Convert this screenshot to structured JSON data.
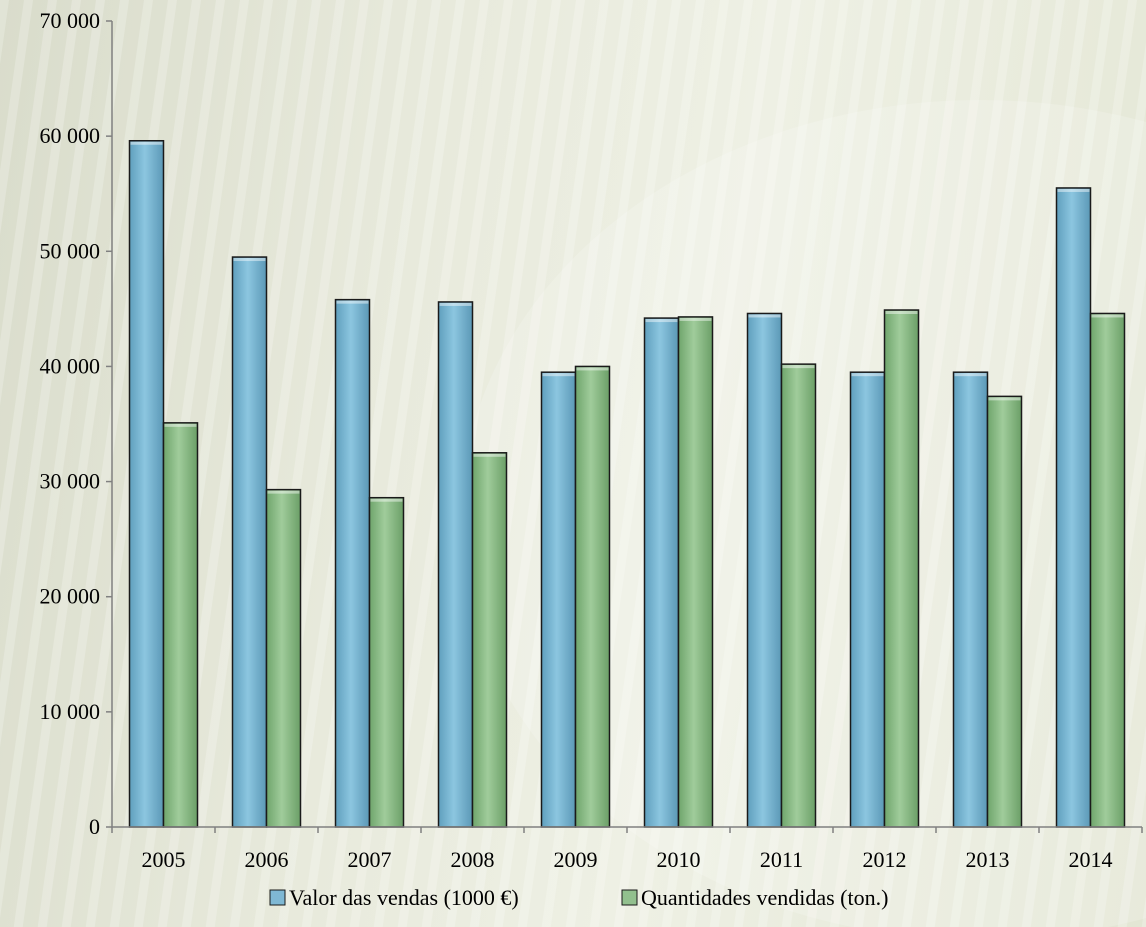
{
  "chart_data": {
    "type": "bar",
    "categories": [
      "2005",
      "2006",
      "2007",
      "2008",
      "2009",
      "2010",
      "2011",
      "2012",
      "2013",
      "2014"
    ],
    "series": [
      {
        "name": "Valor das vendas (1000 €)",
        "color": "#7fb8d4",
        "values": [
          59600,
          49500,
          45800,
          45600,
          39500,
          44200,
          44600,
          39500,
          39500,
          55500
        ]
      },
      {
        "name": "Quantidades vendidas (ton.)",
        "color": "#92c08e",
        "values": [
          35100,
          29300,
          28600,
          32500,
          40000,
          44300,
          40200,
          44900,
          37400,
          44600
        ]
      }
    ],
    "ylim": [
      0,
      70000
    ],
    "yticks": [
      0,
      10000,
      20000,
      30000,
      40000,
      50000,
      60000,
      70000
    ],
    "ytick_labels": [
      "0",
      "10 000",
      "20 000",
      "30 000",
      "40 000",
      "50 000",
      "60 000",
      "70 000"
    ],
    "title": "",
    "xlabel": "",
    "ylabel": "",
    "grid": false,
    "legend_position": "bottom"
  },
  "legend": {
    "items": [
      {
        "label": "Valor das vendas (1000 €)",
        "color": "#7fb8d4"
      },
      {
        "label": "Quantidades vendidas (ton.)",
        "color": "#92c08e"
      }
    ]
  }
}
